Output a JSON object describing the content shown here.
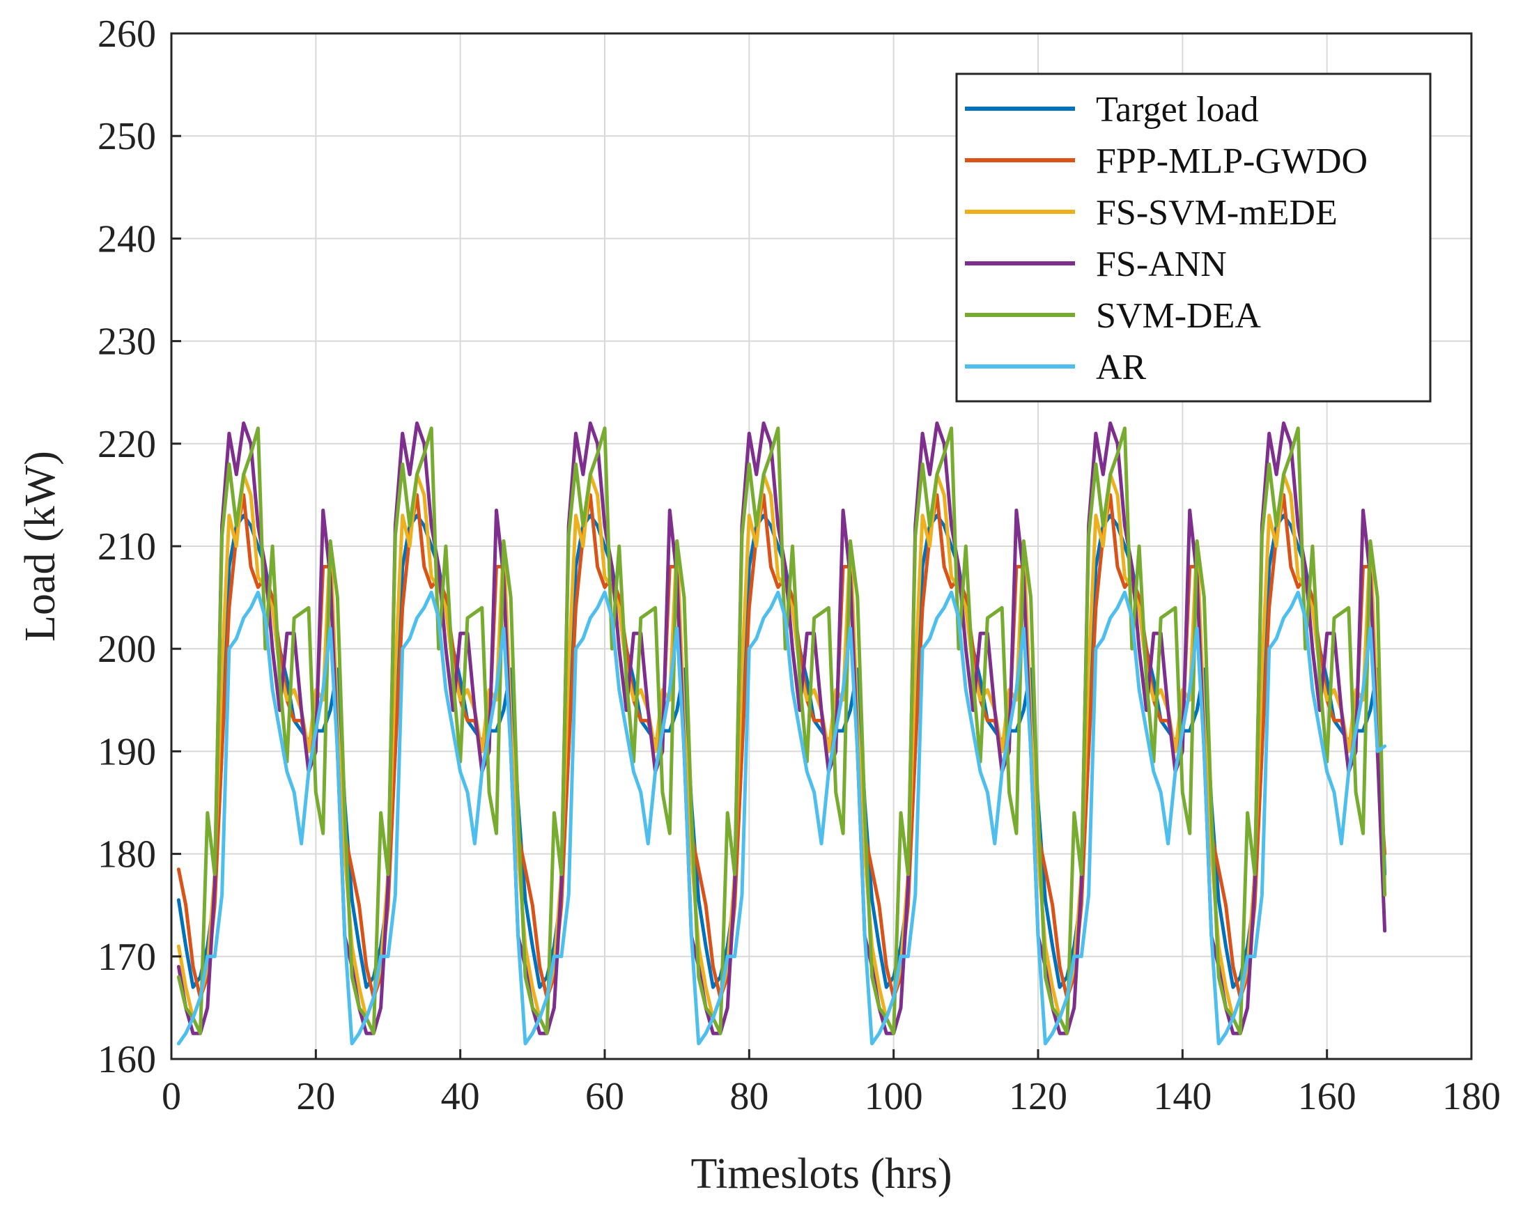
{
  "chart_data": {
    "type": "line",
    "title": "",
    "xlabel": "Timeslots (hrs)",
    "ylabel": "Load (kW)",
    "xlim": [
      0,
      180
    ],
    "ylim": [
      160,
      260
    ],
    "xticks": [
      0,
      20,
      40,
      60,
      80,
      100,
      120,
      140,
      160,
      180
    ],
    "yticks": [
      160,
      170,
      180,
      190,
      200,
      210,
      220,
      230,
      240,
      250,
      260
    ],
    "grid": true,
    "legend_position": "top-right",
    "period_hours": 24,
    "days": 7,
    "series": [
      {
        "name": "Target load",
        "color": "#0072BD",
        "daily_values": [
          175.5,
          171,
          167,
          168,
          171,
          176,
          190,
          208,
          212,
          213,
          212,
          210,
          208,
          204,
          200,
          197,
          193,
          192,
          191,
          192,
          192,
          194,
          198,
          185
        ],
        "last_value": 178
      },
      {
        "name": "FPP-MLP-GWDO",
        "color": "#D95319",
        "daily_values": [
          178.5,
          175,
          169,
          166,
          168,
          175,
          190,
          204,
          211,
          215,
          208,
          206,
          207,
          205,
          200,
          195,
          193,
          193,
          190,
          192,
          208,
          208,
          190,
          182
        ],
        "last_value": 180
      },
      {
        "name": "FS-SVM-mEDE",
        "color": "#EDB120",
        "daily_values": [
          171,
          167,
          164,
          166,
          169,
          178,
          198,
          213,
          210,
          217,
          215,
          207,
          206,
          204,
          198,
          195,
          196,
          194,
          190,
          196,
          195,
          210.5,
          193,
          180
        ],
        "last_value": 176
      },
      {
        "name": "FS-ANN",
        "color": "#7E2F8E",
        "daily_values": [
          169,
          165,
          162.5,
          162.5,
          165,
          177,
          212,
          221,
          217,
          222,
          220,
          212,
          208,
          200,
          194,
          201.5,
          201.5,
          194,
          188,
          190,
          213.5,
          207,
          190,
          172
        ],
        "last_value": 172.5
      },
      {
        "name": "SVM-DEA",
        "color": "#77AC30",
        "daily_values": [
          168,
          165,
          164,
          162.5,
          184,
          178,
          211,
          218,
          212,
          217,
          219,
          221.5,
          200,
          210,
          197,
          189,
          203,
          203.5,
          204,
          186,
          182,
          210.5,
          205,
          184
        ],
        "last_value": 176
      },
      {
        "name": "AR",
        "color": "#4DBEEE",
        "daily_values": [
          161.5,
          162.5,
          164,
          166,
          170,
          170,
          176,
          200,
          201,
          203,
          204,
          205.5,
          203,
          196,
          192,
          188,
          186,
          181,
          188,
          192,
          196,
          202,
          190,
          172
        ],
        "last_value": 190.5
      }
    ]
  }
}
